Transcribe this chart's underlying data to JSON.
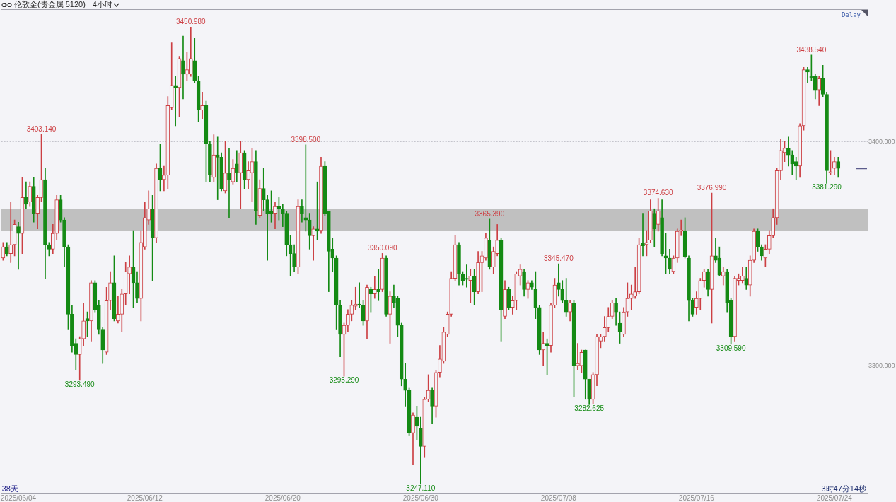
{
  "chart_data": {
    "type": "candlestick",
    "title": "伦敦金(贵金属 5120)",
    "subtitle": "4小时",
    "categories": [
      null,
      null,
      null,
      null,
      "2025/06/04",
      null,
      null,
      null,
      null,
      null,
      null,
      null,
      null,
      null,
      null,
      null,
      null,
      null,
      null,
      null,
      null,
      null,
      null,
      null,
      null,
      null,
      null,
      null,
      null,
      null,
      null,
      null,
      null,
      null,
      null,
      null,
      null,
      "2025/06/12",
      null,
      null,
      null,
      null,
      null,
      null,
      null,
      null,
      null,
      null,
      null,
      null,
      null,
      null,
      null,
      null,
      null,
      null,
      null,
      null,
      null,
      null,
      null,
      null,
      null,
      null,
      null,
      null,
      null,
      null,
      null,
      null,
      null,
      null,
      null,
      "2025/06/20",
      null,
      null,
      null,
      null,
      null,
      null,
      null,
      null,
      null,
      null,
      null,
      null,
      null,
      null,
      null,
      null,
      null,
      null,
      null,
      null,
      null,
      null,
      null,
      null,
      null,
      null,
      null,
      null,
      null,
      null,
      null,
      null,
      null,
      null,
      null,
      "2025/06/30",
      null,
      null,
      null,
      null,
      null,
      null,
      null,
      null,
      null,
      null,
      null,
      null,
      null,
      null,
      null,
      null,
      null,
      null,
      null,
      null,
      null,
      null,
      null,
      null,
      null,
      null,
      null,
      null,
      null,
      null,
      null,
      null,
      null,
      null,
      null,
      "2025/07/08",
      null,
      null,
      null,
      null,
      null,
      null,
      null,
      null,
      null,
      null,
      null,
      null,
      null,
      null,
      null,
      null,
      null,
      null,
      null,
      null,
      null,
      null,
      null,
      null,
      null,
      null,
      null,
      null,
      null,
      null,
      null,
      null,
      null,
      null,
      null,
      "2025/07/16",
      null,
      null,
      null,
      null,
      null,
      null,
      null,
      null,
      null,
      null,
      null,
      null,
      null,
      null,
      null,
      null,
      null,
      null,
      null,
      null,
      null,
      null,
      null,
      null,
      null,
      null,
      null,
      null,
      null,
      null,
      null,
      null,
      null,
      null,
      null,
      "2025/07/24",
      null
    ],
    "ohlc": [
      [
        3348,
        3355,
        3347,
        3353
      ],
      [
        3353,
        3355,
        3349,
        3350
      ],
      [
        3350,
        3373,
        3346,
        3354
      ],
      [
        3354,
        3365,
        3349,
        3363
      ],
      [
        3362,
        3364,
        3343,
        3359
      ],
      [
        3359,
        3384,
        3350,
        3375
      ],
      [
        3375,
        3382,
        3370,
        3372
      ],
      [
        3373,
        3382,
        3371,
        3380
      ],
      [
        3380,
        3384,
        3364,
        3368
      ],
      [
        3368,
        3376,
        3361,
        3375
      ],
      [
        3375,
        3403.14,
        3373,
        3383
      ],
      [
        3383,
        3388,
        3339,
        3354
      ],
      [
        3354,
        3355,
        3349,
        3352
      ],
      [
        3352,
        3363,
        3350,
        3359
      ],
      [
        3359,
        3376,
        3356,
        3374
      ],
      [
        3374,
        3376,
        3364,
        3365
      ],
      [
        3365,
        3366,
        3344,
        3353
      ],
      [
        3353,
        3354,
        3316,
        3323
      ],
      [
        3323,
        3327,
        3306,
        3309
      ],
      [
        3310,
        3312,
        3298,
        3305
      ],
      [
        3305,
        3313,
        3293.49,
        3312
      ],
      [
        3312,
        3328,
        3309,
        3320
      ],
      [
        3321,
        3324,
        3313,
        3320
      ],
      [
        3320,
        3338,
        3311,
        3337
      ],
      [
        3337,
        3338,
        3324,
        3325
      ],
      [
        3327,
        3329,
        3314,
        3316
      ],
      [
        3316,
        3317,
        3301,
        3307
      ],
      [
        3306,
        3335,
        3305,
        3329
      ],
      [
        3329,
        3342,
        3325,
        3337
      ],
      [
        3337,
        3349,
        3320,
        3321
      ],
      [
        3320,
        3331,
        3319,
        3323
      ],
      [
        3323,
        3334,
        3315,
        3332
      ],
      [
        3332,
        3346,
        3327,
        3342
      ],
      [
        3341,
        3349,
        3332,
        3344
      ],
      [
        3344,
        3360,
        3326,
        3337
      ],
      [
        3337,
        3342,
        3328,
        3330
      ],
      [
        3330,
        3360,
        3320,
        3355
      ],
      [
        3353,
        3373,
        3352,
        3366
      ],
      [
        3365,
        3378,
        3363,
        3370
      ],
      [
        3370,
        3376,
        3338,
        3357
      ],
      [
        3357,
        3390,
        3355,
        3388
      ],
      [
        3388,
        3399,
        3378,
        3383
      ],
      [
        3383,
        3389,
        3378,
        3385
      ],
      [
        3385,
        3420,
        3379,
        3416
      ],
      [
        3415,
        3444,
        3414,
        3425
      ],
      [
        3425,
        3429,
        3407,
        3424
      ],
      [
        3424,
        3438,
        3411,
        3437
      ],
      [
        3436,
        3447,
        3419,
        3430
      ],
      [
        3430,
        3440,
        3427,
        3432
      ],
      [
        3430,
        3450.98,
        3429,
        3437
      ],
      [
        3436,
        3446,
        3426,
        3427
      ],
      [
        3427,
        3429,
        3409,
        3414
      ],
      [
        3414,
        3422,
        3410,
        3416
      ],
      [
        3416,
        3418,
        3382,
        3399
      ],
      [
        3399,
        3400,
        3382,
        3385
      ],
      [
        3384,
        3403,
        3382,
        3394
      ],
      [
        3394,
        3402,
        3374,
        3393
      ],
      [
        3393,
        3395,
        3378,
        3379
      ],
      [
        3378,
        3400,
        3377,
        3386
      ],
      [
        3386,
        3397,
        3366,
        3383
      ],
      [
        3382,
        3392,
        3381,
        3388
      ],
      [
        3390,
        3396,
        3382,
        3386
      ],
      [
        3386,
        3400,
        3370,
        3395
      ],
      [
        3395,
        3396,
        3379,
        3383
      ],
      [
        3383,
        3391,
        3379,
        3387
      ],
      [
        3386,
        3397,
        3373,
        3391
      ],
      [
        3391,
        3396,
        3363,
        3369
      ],
      [
        3367,
        3383,
        3366,
        3379
      ],
      [
        3379,
        3388,
        3369,
        3374
      ],
      [
        3374,
        3376,
        3347,
        3368
      ],
      [
        3369,
        3378,
        3364,
        3368
      ],
      [
        3368,
        3373,
        3361,
        3371
      ],
      [
        3371,
        3375,
        3365,
        3370
      ],
      [
        3370,
        3372,
        3362,
        3368
      ],
      [
        3368,
        3369,
        3349,
        3354
      ],
      [
        3354,
        3358,
        3340,
        3350
      ],
      [
        3350,
        3354,
        3342,
        3344
      ],
      [
        3344,
        3374,
        3341,
        3371
      ],
      [
        3371,
        3374,
        3364,
        3368
      ],
      [
        3366,
        3398.5,
        3360,
        3365
      ],
      [
        3365,
        3368,
        3352,
        3358
      ],
      [
        3358,
        3362,
        3347,
        3361
      ],
      [
        3361,
        3382,
        3356,
        3360
      ],
      [
        3360,
        3393,
        3359,
        3389
      ],
      [
        3389,
        3391,
        3367,
        3368
      ],
      [
        3369,
        3369,
        3333,
        3351
      ],
      [
        3352,
        3357,
        3342,
        3348
      ],
      [
        3348,
        3349,
        3316,
        3327
      ],
      [
        3327,
        3329,
        3304,
        3314
      ],
      [
        3314,
        3319,
        3295.29,
        3318
      ],
      [
        3318,
        3325,
        3315,
        3323
      ],
      [
        3323,
        3329,
        3320,
        3327
      ],
      [
        3326.5,
        3335,
        3325,
        3327.5
      ],
      [
        3327.5,
        3337,
        3326,
        3327
      ],
      [
        3327,
        3329,
        3318,
        3320
      ],
      [
        3320,
        3336,
        3312,
        3335
      ],
      [
        3334,
        3335,
        3324,
        3332
      ],
      [
        3332,
        3340,
        3330,
        3334
      ],
      [
        3334,
        3343,
        3329,
        3333
      ],
      [
        3334,
        3350.09,
        3333,
        3348
      ],
      [
        3348,
        3349,
        3322,
        3323
      ],
      [
        3323,
        3333,
        3310,
        3331
      ],
      [
        3331,
        3336,
        3326,
        3328
      ],
      [
        3330,
        3331,
        3313,
        3318
      ],
      [
        3318,
        3319,
        3291,
        3294
      ],
      [
        3294,
        3301,
        3282,
        3289
      ],
      [
        3289,
        3290,
        3269,
        3270
      ],
      [
        3270,
        3279,
        3256,
        3278
      ],
      [
        3277,
        3282,
        3267,
        3273
      ],
      [
        3272,
        3277,
        3247.11,
        3264
      ],
      [
        3264,
        3286,
        3259,
        3285
      ],
      [
        3285,
        3296,
        3284,
        3289
      ],
      [
        3289,
        3290,
        3274,
        3282
      ],
      [
        3282,
        3298,
        3277,
        3297
      ],
      [
        3297,
        3309,
        3295,
        3303
      ],
      [
        3302,
        3317,
        3301,
        3315
      ],
      [
        3314,
        3324,
        3313,
        3323
      ],
      [
        3323,
        3342,
        3322,
        3339
      ],
      [
        3339,
        3358,
        3338,
        3354
      ],
      [
        3354,
        3355,
        3336,
        3341
      ],
      [
        3341,
        3342,
        3336,
        3338
      ],
      [
        3339,
        3345,
        3335,
        3338.5
      ],
      [
        3338,
        3343,
        3328,
        3340
      ],
      [
        3340,
        3343,
        3327,
        3333
      ],
      [
        3333,
        3351,
        3332,
        3346
      ],
      [
        3346,
        3351,
        3333,
        3349
      ],
      [
        3348,
        3359,
        3347,
        3357
      ],
      [
        3356,
        3365.39,
        3343,
        3344
      ],
      [
        3344,
        3353,
        3341,
        3351
      ],
      [
        3350,
        3363,
        3349,
        3356
      ],
      [
        3356,
        3357,
        3311,
        3325
      ],
      [
        3322,
        3338,
        3321,
        3334
      ],
      [
        3334,
        3335,
        3325,
        3326
      ],
      [
        3326,
        3331,
        3323,
        3329
      ],
      [
        3329,
        3342,
        3325,
        3341
      ],
      [
        3340,
        3345,
        3336,
        3343
      ],
      [
        3342,
        3343,
        3331,
        3334
      ],
      [
        3334,
        3338,
        3330,
        3337
      ],
      [
        3337,
        3338,
        3334,
        3335
      ],
      [
        3334,
        3342,
        3321,
        3326
      ],
      [
        3326,
        3327,
        3305,
        3307
      ],
      [
        3307,
        3315,
        3300,
        3310
      ],
      [
        3310,
        3312,
        3296,
        3309
      ],
      [
        3309,
        3328,
        3306,
        3327
      ],
      [
        3327,
        3339,
        3326,
        3336
      ],
      [
        3337,
        3345.47,
        3331,
        3334
      ],
      [
        3334,
        3338,
        3328,
        3329
      ],
      [
        3329,
        3339,
        3322,
        3324
      ],
      [
        3324,
        3329,
        3320,
        3328
      ],
      [
        3328,
        3329,
        3286,
        3300
      ],
      [
        3300,
        3310,
        3298,
        3301
      ],
      [
        3300,
        3307,
        3297,
        3306
      ],
      [
        3307,
        3307,
        3285,
        3294
      ],
      [
        3294,
        3294,
        3282.625,
        3285
      ],
      [
        3285,
        3297,
        3283,
        3296
      ],
      [
        3296,
        3314,
        3291,
        3313
      ],
      [
        3311,
        3314,
        3308,
        3313
      ],
      [
        3313,
        3322,
        3311,
        3317
      ],
      [
        3317,
        3326,
        3315,
        3322
      ],
      [
        3322,
        3329,
        3321,
        3328
      ],
      [
        3328,
        3330,
        3318,
        3324
      ],
      [
        3319,
        3324,
        3310,
        3315
      ],
      [
        3314,
        3326,
        3313,
        3324
      ],
      [
        3324,
        3337,
        3322,
        3330
      ],
      [
        3330,
        3336,
        3325,
        3332
      ],
      [
        3331,
        3344,
        3330,
        3333
      ],
      [
        3333,
        3357,
        3332,
        3354
      ],
      [
        3354.5,
        3368,
        3349,
        3353.5
      ],
      [
        3354,
        3360,
        3349,
        3355
      ],
      [
        3356,
        3374,
        3355,
        3369
      ],
      [
        3368,
        3370,
        3353,
        3361
      ],
      [
        3363,
        3374.63,
        3360,
        3369
      ],
      [
        3366,
        3374,
        3349,
        3350
      ],
      [
        3349,
        3359,
        3341,
        3348
      ],
      [
        3348,
        3352,
        3341,
        3343
      ],
      [
        3342,
        3349,
        3341,
        3348
      ],
      [
        3348,
        3361,
        3346,
        3360
      ],
      [
        3360,
        3365,
        3358,
        3360.5
      ],
      [
        3360,
        3366,
        3348,
        3348.5
      ],
      [
        3348,
        3349,
        3320,
        3329
      ],
      [
        3329,
        3330,
        3322,
        3323
      ],
      [
        3326,
        3333,
        3323,
        3330
      ],
      [
        3330,
        3339,
        3325,
        3338
      ],
      [
        3338,
        3343,
        3335,
        3342
      ],
      [
        3342,
        3343,
        3331,
        3334
      ],
      [
        3334,
        3376.99,
        3319,
        3349
      ],
      [
        3349,
        3357,
        3346,
        3347
      ],
      [
        3348,
        3353,
        3340,
        3340.5
      ],
      [
        3340,
        3344,
        3336,
        3342
      ],
      [
        3342,
        3343,
        3324,
        3328
      ],
      [
        3329,
        3330,
        3309.59,
        3313
      ],
      [
        3313,
        3340,
        3311,
        3339
      ],
      [
        3338,
        3341,
        3336,
        3339
      ],
      [
        3338,
        3344,
        3337,
        3340
      ],
      [
        3339,
        3344,
        3334,
        3336
      ],
      [
        3336,
        3349,
        3331,
        3347
      ],
      [
        3347,
        3361,
        3346,
        3360
      ],
      [
        3360,
        3361,
        3351,
        3353
      ],
      [
        3353,
        3354,
        3347,
        3349
      ],
      [
        3348,
        3354,
        3344,
        3352
      ],
      [
        3352,
        3360,
        3350,
        3358
      ],
      [
        3358,
        3370,
        3357,
        3366
      ],
      [
        3366,
        3388,
        3363,
        3387
      ],
      [
        3387,
        3401,
        3383,
        3396
      ],
      [
        3395,
        3400,
        3391,
        3397
      ],
      [
        3397,
        3402,
        3389,
        3394
      ],
      [
        3394,
        3396,
        3385,
        3390
      ],
      [
        3391,
        3393,
        3383,
        3389
      ],
      [
        3389,
        3408,
        3384,
        3407
      ],
      [
        3407,
        3433,
        3405,
        3432
      ],
      [
        3432,
        3433,
        3426,
        3431
      ],
      [
        3429,
        3438.54,
        3427,
        3428.5
      ],
      [
        3429,
        3430,
        3419,
        3423
      ],
      [
        3423,
        3429,
        3416,
        3428
      ],
      [
        3428,
        3434,
        3420,
        3421
      ],
      [
        3421,
        3422,
        3381.29,
        3387
      ],
      [
        3386,
        3396,
        3385,
        3386.5
      ],
      [
        3388,
        3393,
        3385,
        3391
      ],
      [
        3391,
        3393,
        3384,
        3388
      ]
    ],
    "colors": [
      "#cc3f43",
      "#148a14",
      "#cc3f43",
      "#cc3f43",
      "#148a14",
      "#cc3f43",
      "#148a14",
      "#cc3f43",
      "#148a14",
      "#cc3f43",
      "#cc3f43",
      "#148a14",
      "#148a14",
      "#cc3f43",
      "#cc3f43",
      "#148a14",
      "#148a14",
      "#148a14",
      "#148a14",
      "#148a14",
      "#cc3f43",
      "#cc3f43",
      "#148a14",
      "#cc3f43",
      "#148a14",
      "#148a14",
      "#148a14",
      "#cc3f43",
      "#cc3f43",
      "#148a14",
      "#cc3f43",
      "#cc3f43",
      "#cc3f43",
      "#cc3f43",
      "#148a14",
      "#148a14",
      "#cc3f43",
      "#cc3f43",
      "#cc3f43",
      "#148a14",
      "#cc3f43",
      "#148a14",
      "#cc3f43",
      "#cc3f43",
      "#cc3f43",
      "#148a14",
      "#cc3f43",
      "#148a14",
      "#cc3f43",
      "#cc3f43",
      "#148a14",
      "#148a14",
      "#cc3f43",
      "#148a14",
      "#148a14",
      "#cc3f43",
      "#148a14",
      "#148a14",
      "#cc3f43",
      "#148a14",
      "#cc3f43",
      "#148a14",
      "#cc3f43",
      "#148a14",
      "#cc3f43",
      "#cc3f43",
      "#148a14",
      "#cc3f43",
      "#148a14",
      "#148a14",
      "#148a14",
      "#cc3f43",
      "#148a14",
      "#148a14",
      "#148a14",
      "#148a14",
      "#148a14",
      "#cc3f43",
      "#148a14",
      "#148a14",
      "#148a14",
      "#cc3f43",
      "#148a14",
      "#cc3f43",
      "#148a14",
      "#148a14",
      "#148a14",
      "#148a14",
      "#148a14",
      "#cc3f43",
      "#cc3f43",
      "#cc3f43",
      "#cc3f43",
      "#148a14",
      "#148a14",
      "#cc3f43",
      "#148a14",
      "#cc3f43",
      "#148a14",
      "#cc3f43",
      "#148a14",
      "#cc3f43",
      "#148a14",
      "#148a14",
      "#148a14",
      "#148a14",
      "#148a14",
      "#cc3f43",
      "#148a14",
      "#148a14",
      "#cc3f43",
      "#cc3f43",
      "#148a14",
      "#cc3f43",
      "#cc3f43",
      "#cc3f43",
      "#cc3f43",
      "#cc3f43",
      "#cc3f43",
      "#148a14",
      "#148a14",
      "#148a14",
      "#cc3f43",
      "#148a14",
      "#cc3f43",
      "#cc3f43",
      "#cc3f43",
      "#148a14",
      "#cc3f43",
      "#cc3f43",
      "#148a14",
      "#cc3f43",
      "#148a14",
      "#cc3f43",
      "#cc3f43",
      "#cc3f43",
      "#148a14",
      "#cc3f43",
      "#148a14",
      "#148a14",
      "#148a14",
      "#cc3f43",
      "#148a14",
      "#cc3f43",
      "#cc3f43",
      "#148a14",
      "#148a14",
      "#148a14",
      "#cc3f43",
      "#148a14",
      "#cc3f43",
      "#cc3f43",
      "#148a14",
      "#148a14",
      "#cc3f43",
      "#cc3f43",
      "#cc3f43",
      "#cc3f43",
      "#cc3f43",
      "#cc3f43",
      "#148a14",
      "#148a14",
      "#cc3f43",
      "#cc3f43",
      "#cc3f43",
      "#cc3f43",
      "#cc3f43",
      "#148a14",
      "#cc3f43",
      "#cc3f43",
      "#148a14",
      "#cc3f43",
      "#148a14",
      "#148a14",
      "#148a14",
      "#cc3f43",
      "#cc3f43",
      "#cc3f43",
      "#148a14",
      "#148a14",
      "#148a14",
      "#cc3f43",
      "#cc3f43",
      "#cc3f43",
      "#148a14",
      "#cc3f43",
      "#148a14",
      "#148a14",
      "#cc3f43",
      "#148a14",
      "#148a14",
      "#cc3f43",
      "#cc3f43",
      "#cc3f43",
      "#148a14",
      "#cc3f43",
      "#cc3f43",
      "#148a14",
      "#148a14",
      "#cc3f43",
      "#cc3f43",
      "#cc3f43",
      "#cc3f43",
      "#cc3f43",
      "#cc3f43",
      "#148a14",
      "#148a14",
      "#148a14",
      "#cc3f43",
      "#cc3f43",
      "#148a14",
      "#148a14",
      "#148a14",
      "#cc3f43",
      "#148a14",
      "#148a14",
      "#cc3f43",
      "#cc3f43",
      "#148a14"
    ],
    "ylim": [
      3243,
      3459
    ],
    "yticks": [
      {
        "value": 3300,
        "label": "3300.000"
      },
      {
        "value": 3400,
        "label": "3400.000"
      }
    ],
    "grid": "y",
    "bands": [
      {
        "axis": "y",
        "from": 3360,
        "to": 3370,
        "color": "#c0c0c0"
      }
    ],
    "annotations": [
      "Delay",
      "38天",
      "3时47分14秒",
      {
        "text": "3403.140",
        "y": 3403.14
      },
      {
        "text": "3293.490",
        "y": 3293.49
      },
      {
        "text": "3450.980",
        "y": 3450.98
      },
      {
        "text": "3398.500",
        "y": 3398.5
      },
      {
        "text": "3295.290",
        "y": 3295.29
      },
      {
        "text": "3350.090",
        "y": 3350.09
      },
      {
        "text": "3247.110",
        "y": 3247.11
      },
      {
        "text": "3365.390",
        "y": 3365.39
      },
      {
        "text": "3345.470",
        "y": 3345.47
      },
      {
        "text": "3282.625",
        "y": 3282.625
      },
      {
        "text": "3374.630",
        "y": 3374.63
      },
      {
        "text": "3376.990",
        "y": 3376.99
      },
      {
        "text": "3309.590",
        "y": 3309.59
      },
      {
        "text": "3438.540",
        "y": 3438.54
      },
      {
        "text": "3381.290",
        "y": 3381.29
      }
    ]
  }
}
